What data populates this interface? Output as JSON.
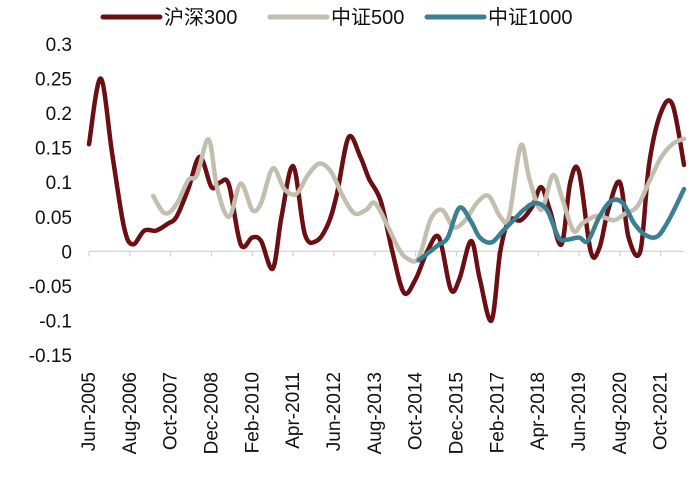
{
  "chart_data": {
    "type": "line",
    "title": "",
    "xlabel": "",
    "ylabel": "",
    "ylim": [
      -0.15,
      0.3
    ],
    "y_ticks": [
      "0.3",
      "0.25",
      "0.2",
      "0.15",
      "0.1",
      "0.05",
      "0",
      "-0.05",
      "-0.1",
      "-0.15"
    ],
    "x_ticks": [
      "Jun-2005",
      "Aug-2006",
      "Oct-2007",
      "Dec-2008",
      "Feb-2010",
      "Apr-2011",
      "Jun-2012",
      "Aug-2013",
      "Oct-2014",
      "Dec-2015",
      "Feb-2017",
      "Apr-2018",
      "Jun-2019",
      "Aug-2020",
      "Oct-2021"
    ],
    "x_tick_positions": [
      0,
      14,
      28,
      42,
      56,
      70,
      84,
      98,
      112,
      126,
      140,
      154,
      168,
      182,
      196
    ],
    "x_range": [
      0,
      204
    ],
    "legend_position": "top",
    "grid": false,
    "series": [
      {
        "name": "沪深300",
        "color": "#6b0f14",
        "points": [
          [
            0,
            0.155
          ],
          [
            4,
            0.25
          ],
          [
            8,
            0.14
          ],
          [
            12,
            0.035
          ],
          [
            15,
            0.01
          ],
          [
            19,
            0.03
          ],
          [
            23,
            0.03
          ],
          [
            27,
            0.04
          ],
          [
            30,
            0.05
          ],
          [
            34,
            0.09
          ],
          [
            38,
            0.137
          ],
          [
            42,
            0.093
          ],
          [
            45,
            0.1
          ],
          [
            48,
            0.096
          ],
          [
            52,
            0.01
          ],
          [
            56,
            0.02
          ],
          [
            59,
            0.015
          ],
          [
            63,
            -0.025
          ],
          [
            66,
            0.05
          ],
          [
            70,
            0.123
          ],
          [
            74,
            0.025
          ],
          [
            78,
            0.015
          ],
          [
            82,
            0.04
          ],
          [
            85,
            0.083
          ],
          [
            89,
            0.165
          ],
          [
            93,
            0.137
          ],
          [
            96,
            0.105
          ],
          [
            100,
            0.073
          ],
          [
            104,
            0.0
          ],
          [
            108,
            -0.06
          ],
          [
            112,
            -0.04
          ],
          [
            116,
            0.0
          ],
          [
            120,
            0.02
          ],
          [
            124,
            -0.055
          ],
          [
            127,
            -0.04
          ],
          [
            131,
            0.015
          ],
          [
            134,
            -0.04
          ],
          [
            138,
            -0.1
          ],
          [
            141,
            0.0
          ],
          [
            144,
            0.045
          ],
          [
            148,
            0.045
          ],
          [
            152,
            0.065
          ],
          [
            155,
            0.093
          ],
          [
            158,
            0.06
          ],
          [
            162,
            0.01
          ],
          [
            165,
            0.1
          ],
          [
            168,
            0.115
          ],
          [
            172,
            0.0
          ],
          [
            175,
            0.005
          ],
          [
            178,
            0.06
          ],
          [
            182,
            0.1
          ],
          [
            185,
            0.02
          ],
          [
            189,
            0.0
          ],
          [
            192,
            0.125
          ],
          [
            196,
            0.2
          ],
          [
            200,
            0.213
          ],
          [
            204,
            0.125
          ]
        ]
      },
      {
        "name": "中证500",
        "color": "#c3bfae",
        "points": [
          [
            22,
            0.08
          ],
          [
            26,
            0.055
          ],
          [
            30,
            0.068
          ],
          [
            34,
            0.103
          ],
          [
            37,
            0.11
          ],
          [
            41,
            0.162
          ],
          [
            44,
            0.09
          ],
          [
            48,
            0.05
          ],
          [
            52,
            0.098
          ],
          [
            56,
            0.06
          ],
          [
            59,
            0.07
          ],
          [
            63,
            0.12
          ],
          [
            67,
            0.09
          ],
          [
            71,
            0.083
          ],
          [
            75,
            0.11
          ],
          [
            79,
            0.127
          ],
          [
            83,
            0.115
          ],
          [
            87,
            0.08
          ],
          [
            91,
            0.055
          ],
          [
            95,
            0.06
          ],
          [
            98,
            0.07
          ],
          [
            102,
            0.04
          ],
          [
            106,
            0.005
          ],
          [
            109,
            -0.01
          ],
          [
            113,
            -0.01
          ],
          [
            117,
            0.045
          ],
          [
            121,
            0.06
          ],
          [
            125,
            0.035
          ],
          [
            129,
            0.045
          ],
          [
            133,
            0.07
          ],
          [
            137,
            0.08
          ],
          [
            141,
            0.05
          ],
          [
            144,
            0.05
          ],
          [
            148,
            0.153
          ],
          [
            151,
            0.105
          ],
          [
            155,
            0.06
          ],
          [
            159,
            0.11
          ],
          [
            162,
            0.08
          ],
          [
            166,
            0.03
          ],
          [
            169,
            0.04
          ],
          [
            173,
            0.05
          ],
          [
            176,
            0.05
          ],
          [
            180,
            0.045
          ],
          [
            184,
            0.055
          ],
          [
            188,
            0.065
          ],
          [
            192,
            0.1
          ],
          [
            196,
            0.135
          ],
          [
            200,
            0.155
          ],
          [
            204,
            0.163
          ]
        ]
      },
      {
        "name": "中证1000",
        "color": "#3b8092",
        "points": [
          [
            113,
            -0.013
          ],
          [
            117,
            0.0
          ],
          [
            120,
            0.01
          ],
          [
            123,
            0.02
          ],
          [
            127,
            0.063
          ],
          [
            131,
            0.043
          ],
          [
            134,
            0.02
          ],
          [
            138,
            0.013
          ],
          [
            142,
            0.03
          ],
          [
            146,
            0.047
          ],
          [
            149,
            0.06
          ],
          [
            153,
            0.07
          ],
          [
            157,
            0.06
          ],
          [
            161,
            0.02
          ],
          [
            164,
            0.017
          ],
          [
            168,
            0.02
          ],
          [
            171,
            0.015
          ],
          [
            175,
            0.05
          ],
          [
            179,
            0.073
          ],
          [
            183,
            0.07
          ],
          [
            187,
            0.04
          ],
          [
            191,
            0.023
          ],
          [
            195,
            0.022
          ],
          [
            199,
            0.047
          ],
          [
            204,
            0.09
          ]
        ]
      }
    ]
  }
}
